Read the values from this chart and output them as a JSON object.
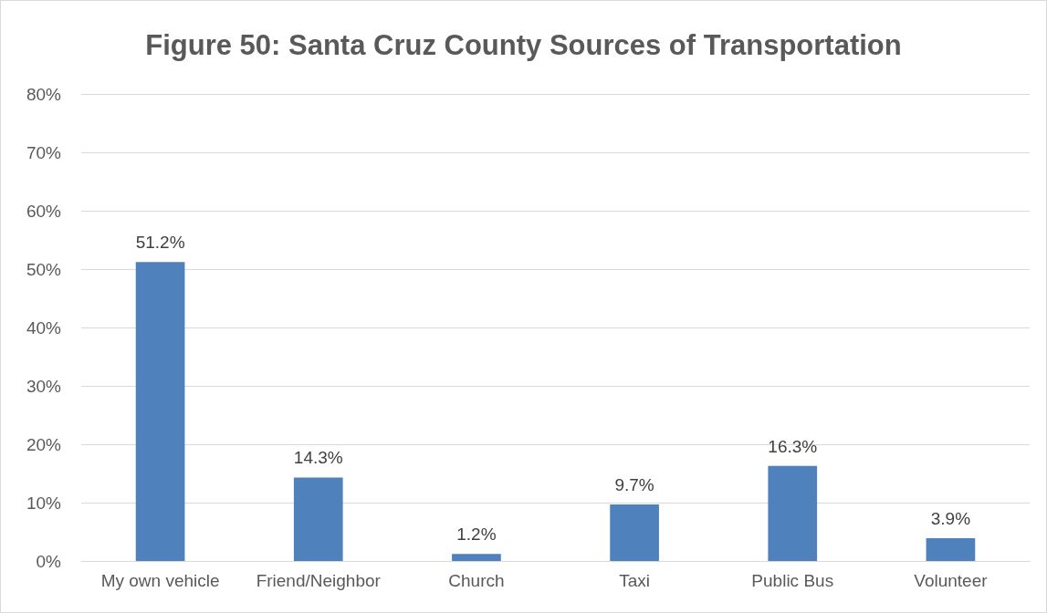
{
  "chart_data": {
    "type": "bar",
    "title": "Figure 50: Santa Cruz County Sources of Transportation",
    "categories": [
      "My own vehicle",
      "Friend/Neighbor",
      "Church",
      "Taxi",
      "Public Bus",
      "Volunteer"
    ],
    "values": [
      51.2,
      14.3,
      1.2,
      9.7,
      16.3,
      3.9
    ],
    "value_labels": [
      "51.2%",
      "14.3%",
      "1.2%",
      "9.7%",
      "16.3%",
      "3.9%"
    ],
    "color": "#4f81bd",
    "ylim": [
      0,
      80
    ],
    "yticks": [
      {
        "value": 0,
        "label": "0%"
      },
      {
        "value": 10,
        "label": "10%"
      },
      {
        "value": 20,
        "label": "20%"
      },
      {
        "value": 30,
        "label": "30%"
      },
      {
        "value": 40,
        "label": "40%"
      },
      {
        "value": 50,
        "label": "50%"
      },
      {
        "value": 60,
        "label": "60%"
      },
      {
        "value": 70,
        "label": "70%"
      },
      {
        "value": 80,
        "label": "80%"
      }
    ],
    "grid": "y"
  }
}
